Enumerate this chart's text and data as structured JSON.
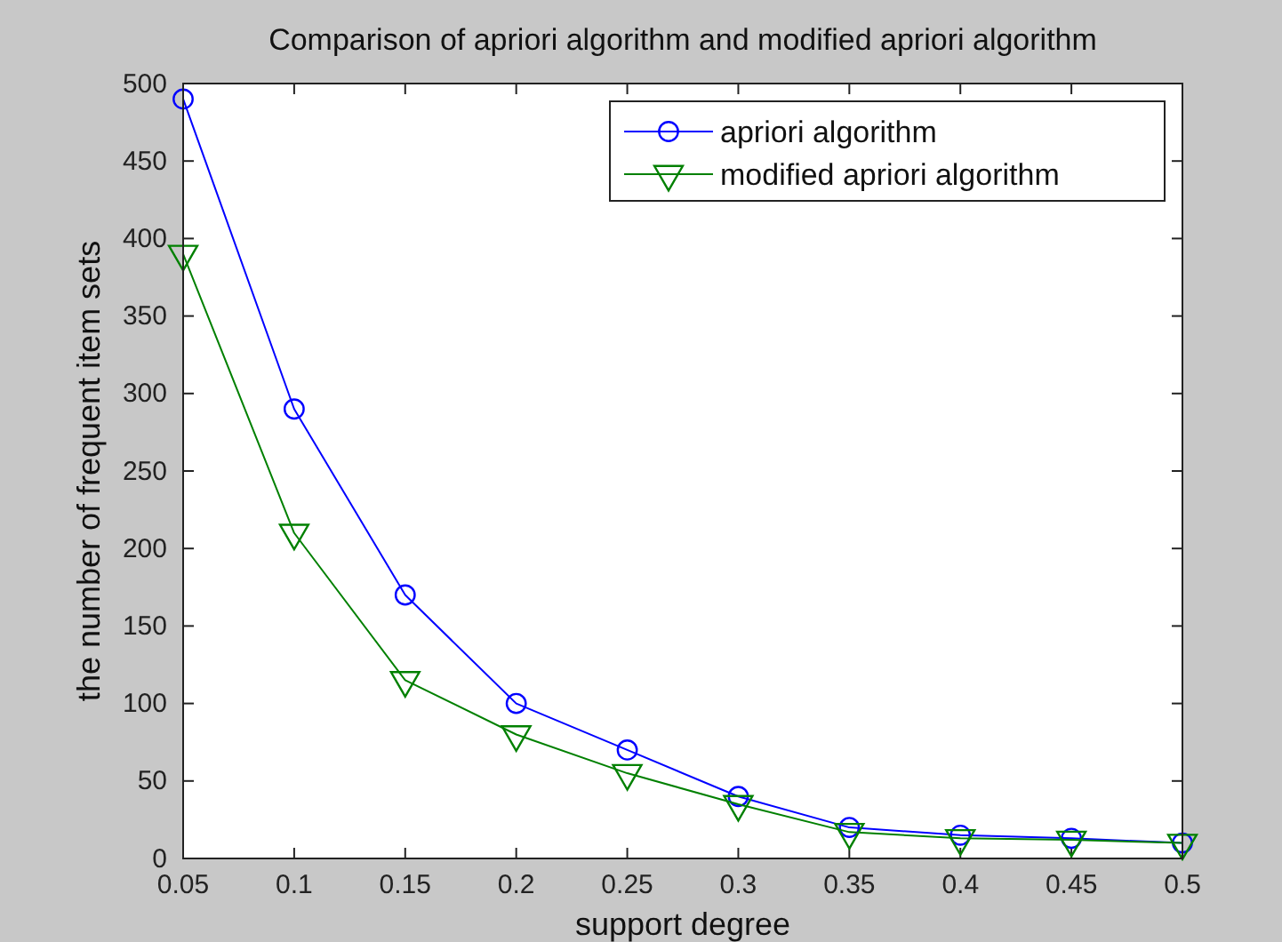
{
  "chart_data": {
    "type": "line",
    "title": "Comparison of apriori algorithm and modified apriori algorithm",
    "xlabel": "support degree",
    "ylabel": "the number of frequent item sets",
    "x": [
      0.05,
      0.1,
      0.15,
      0.2,
      0.25,
      0.3,
      0.35,
      0.4,
      0.45,
      0.5
    ],
    "series": [
      {
        "name": "apriori algorithm",
        "color": "#0000ff",
        "marker": "circle",
        "values": [
          490,
          290,
          170,
          100,
          70,
          40,
          20,
          15,
          13,
          10
        ]
      },
      {
        "name": "modified apriori algorithm",
        "color": "#008000",
        "marker": "triangle",
        "values": [
          390,
          210,
          115,
          80,
          55,
          35,
          17,
          13,
          12,
          10
        ]
      }
    ],
    "xlim": [
      0.05,
      0.5
    ],
    "xticks": [
      0.05,
      0.1,
      0.15,
      0.2,
      0.25,
      0.3,
      0.35,
      0.4,
      0.45,
      0.5
    ],
    "ylim": [
      0,
      500
    ],
    "yticks": [
      0,
      50,
      100,
      150,
      200,
      250,
      300,
      350,
      400,
      450,
      500
    ],
    "grid": false,
    "legend": "top right",
    "line_style": "solid"
  }
}
